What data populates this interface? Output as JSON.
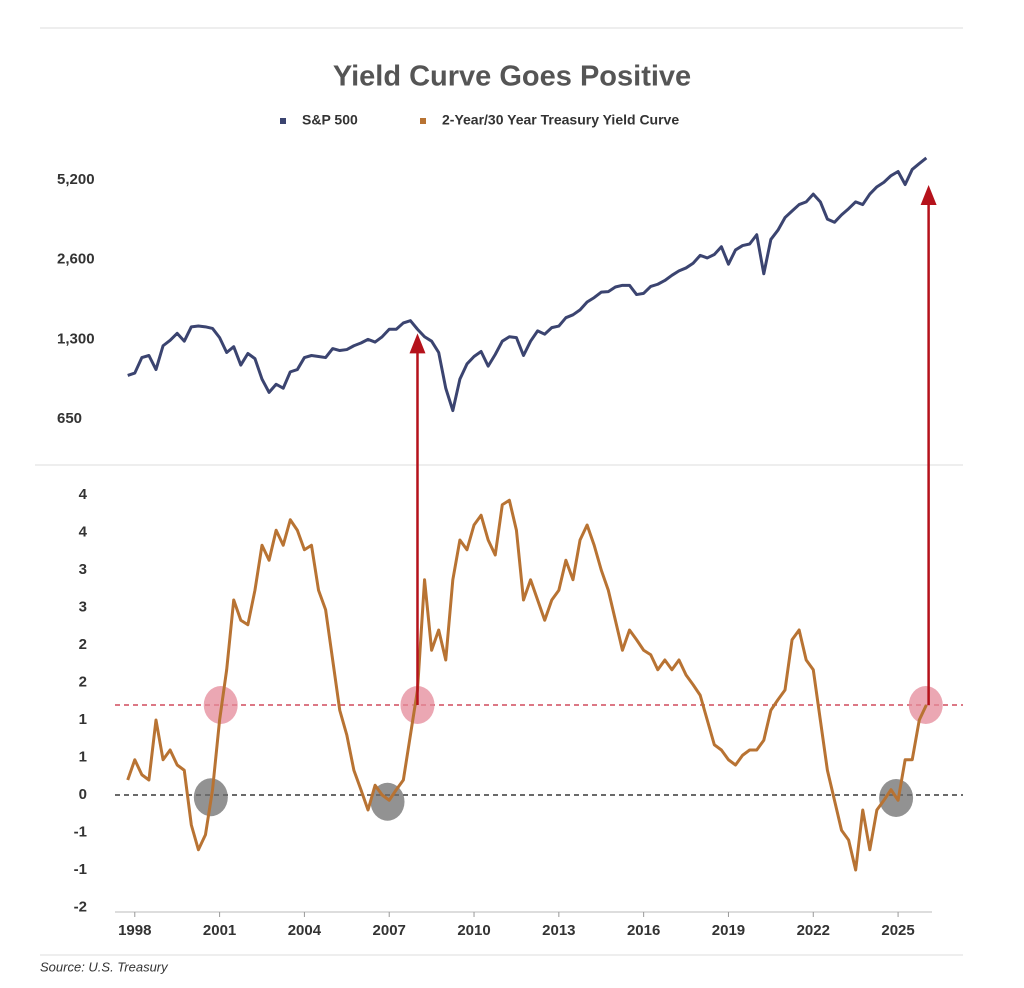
{
  "chart_data": {
    "type": "line",
    "title": "Yield Curve Goes Positive",
    "source": "Source: U.S. Treasury",
    "x": [
      1997.75,
      1998,
      1998.25,
      1998.5,
      1998.75,
      1999,
      1999.25,
      1999.5,
      1999.75,
      2000,
      2000.25,
      2000.5,
      2000.75,
      2001,
      2001.25,
      2001.5,
      2001.75,
      2002,
      2002.25,
      2002.5,
      2002.75,
      2003,
      2003.25,
      2003.5,
      2003.75,
      2004,
      2004.25,
      2004.5,
      2004.75,
      2005,
      2005.25,
      2005.5,
      2005.75,
      2006,
      2006.25,
      2006.5,
      2006.75,
      2007,
      2007.25,
      2007.5,
      2007.75,
      2008,
      2008.25,
      2008.5,
      2008.75,
      2009,
      2009.25,
      2009.5,
      2009.75,
      2010,
      2010.25,
      2010.5,
      2010.75,
      2011,
      2011.25,
      2011.5,
      2011.75,
      2012,
      2012.25,
      2012.5,
      2012.75,
      2013,
      2013.25,
      2013.5,
      2013.75,
      2014,
      2014.25,
      2014.5,
      2014.75,
      2015,
      2015.25,
      2015.5,
      2015.75,
      2016,
      2016.25,
      2016.5,
      2016.75,
      2017,
      2017.25,
      2017.5,
      2017.75,
      2018,
      2018.25,
      2018.5,
      2018.75,
      2019,
      2019.25,
      2019.5,
      2019.75,
      2020,
      2020.25,
      2020.5,
      2020.75,
      2021,
      2021.25,
      2021.5,
      2021.75,
      2022,
      2022.25,
      2022.5,
      2022.75,
      2023,
      2023.25,
      2023.5,
      2023.75,
      2024,
      2024.25,
      2024.5,
      2024.75,
      2025,
      2025.25,
      2025.5,
      2025.75,
      2026
    ],
    "series": [
      {
        "name": "S&P 500",
        "color": "#3b4470",
        "axis": "y",
        "values": [
          950,
          970,
          1110,
          1130,
          1000,
          1230,
          1290,
          1370,
          1280,
          1450,
          1460,
          1450,
          1430,
          1320,
          1160,
          1220,
          1040,
          1150,
          1100,
          920,
          820,
          880,
          850,
          980,
          1000,
          1110,
          1130,
          1120,
          1110,
          1200,
          1180,
          1190,
          1230,
          1260,
          1300,
          1270,
          1330,
          1420,
          1420,
          1500,
          1530,
          1420,
          1330,
          1280,
          1160,
          850,
          700,
          920,
          1050,
          1120,
          1170,
          1030,
          1140,
          1280,
          1330,
          1320,
          1130,
          1280,
          1400,
          1360,
          1440,
          1460,
          1570,
          1610,
          1680,
          1800,
          1870,
          1960,
          1970,
          2050,
          2080,
          2080,
          1920,
          1940,
          2060,
          2100,
          2170,
          2270,
          2360,
          2420,
          2520,
          2700,
          2640,
          2720,
          2910,
          2500,
          2830,
          2940,
          2980,
          3230,
          2300,
          3100,
          3360,
          3750,
          3970,
          4200,
          4300,
          4600,
          4300,
          3700,
          3600,
          3840,
          4050,
          4300,
          4200,
          4600,
          4900,
          5100,
          5400,
          5600,
          5000,
          5700,
          6000,
          6300
        ]
      },
      {
        "name": "2-Year/30 Year Treasury Yield Curve",
        "color": "#b87333",
        "axis": "y2",
        "values": [
          0.2,
          0.47,
          0.27,
          0.2,
          1.0,
          0.47,
          0.6,
          0.4,
          0.33,
          -0.4,
          -0.73,
          -0.53,
          0.07,
          1.0,
          1.67,
          2.6,
          2.33,
          2.27,
          2.73,
          3.33,
          3.13,
          3.53,
          3.33,
          3.67,
          3.53,
          3.27,
          3.33,
          2.73,
          2.47,
          1.8,
          1.13,
          0.8,
          0.33,
          0.07,
          -0.2,
          0.13,
          0,
          -0.07,
          0.07,
          0.2,
          0.8,
          1.4,
          2.87,
          1.93,
          2.2,
          1.8,
          2.87,
          3.4,
          3.27,
          3.6,
          3.73,
          3.4,
          3.2,
          3.87,
          3.93,
          3.53,
          2.6,
          2.87,
          2.6,
          2.33,
          2.6,
          2.73,
          3.13,
          2.87,
          3.4,
          3.6,
          3.33,
          3.0,
          2.73,
          2.33,
          1.93,
          2.2,
          2.07,
          1.93,
          1.87,
          1.67,
          1.8,
          1.67,
          1.8,
          1.6,
          1.47,
          1.33,
          1.0,
          0.67,
          0.6,
          0.47,
          0.4,
          0.53,
          0.6,
          0.6,
          0.73,
          1.13,
          1.27,
          1.4,
          2.07,
          2.2,
          1.8,
          1.67,
          1.0,
          0.33,
          -0.07,
          -0.47,
          -0.6,
          -1.0,
          -0.2,
          -0.73,
          -0.2,
          -0.07,
          0.07,
          -0.07,
          0.47,
          0.47,
          1.0,
          1.2
        ]
      }
    ],
    "xlim": [
      1997.3,
      2026.2
    ],
    "xticks": [
      1998,
      2001,
      2004,
      2007,
      2010,
      2013,
      2016,
      2019,
      2022,
      2025
    ],
    "yscale": "log",
    "ylim": [
      436,
      6750
    ],
    "yticks": [
      650,
      {
        "value": 1300,
        "label": "1,300"
      },
      {
        "value": 2600,
        "label": "2,600"
      },
      {
        "value": 5200,
        "label": "5,200"
      }
    ],
    "y2lim": [
      -1.56,
      4.4
    ],
    "y2ticks": [
      4,
      {
        "value": 3.5,
        "label": "4"
      },
      3,
      {
        "value": 2.5,
        "label": "3"
      },
      2,
      {
        "value": 1.5,
        "label": "2"
      },
      1,
      {
        "value": 0.5,
        "label": "1"
      },
      0,
      {
        "value": -0.5,
        "label": "-1"
      },
      -1,
      {
        "value": -1.5,
        "label": "-2"
      }
    ],
    "reference_lines": [
      {
        "value": 1.2,
        "color": "#c8283c"
      },
      {
        "value": 0,
        "color": "#111111"
      }
    ],
    "highlights": [
      {
        "x": 2001.04,
        "y": 1.2,
        "color": "#e48a9a"
      },
      {
        "x": 2008.0,
        "y": 1.2,
        "color": "#e48a9a"
      },
      {
        "x": 2025.98,
        "y": 1.2,
        "color": "#e48a9a"
      },
      {
        "x": 2000.69,
        "y": -0.03,
        "color": "#6e6e6e"
      },
      {
        "x": 2006.94,
        "y": -0.09,
        "color": "#6e6e6e"
      },
      {
        "x": 2024.93,
        "y": -0.04,
        "color": "#6e6e6e"
      }
    ],
    "arrows": [
      {
        "x": 2008.0,
        "from": 1.2,
        "to": 1370,
        "color": "#b5121b"
      },
      {
        "x": 2026.08,
        "from": 1.2,
        "to": 4980,
        "color": "#b5121b"
      }
    ]
  }
}
